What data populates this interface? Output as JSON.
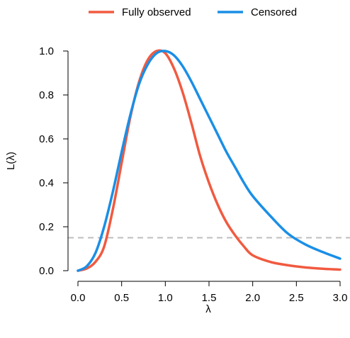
{
  "chart_data": {
    "type": "line",
    "xlabel": "λ",
    "ylabel": "L(λ)",
    "xlim": [
      0,
      3
    ],
    "ylim": [
      0,
      1
    ],
    "x_ticks": [
      "0.0",
      "0.5",
      "1.0",
      "1.5",
      "2.0",
      "2.5",
      "3.0"
    ],
    "y_ticks": [
      "0.0",
      "0.2",
      "0.4",
      "0.6",
      "0.8",
      "1.0"
    ],
    "legend_position": "top",
    "grid": false,
    "reference_line": {
      "y": 0.15,
      "style": "dashed",
      "color": "#bdbdbd"
    },
    "series": [
      {
        "name": "Fully observed",
        "color": "#f15a40",
        "x": [
          0,
          0.1,
          0.2,
          0.3,
          0.4,
          0.5,
          0.6,
          0.7,
          0.8,
          0.9,
          1.0,
          1.1,
          1.2,
          1.3,
          1.4,
          1.5,
          1.6,
          1.7,
          1.8,
          1.9,
          2.0,
          2.2,
          2.4,
          2.6,
          2.8,
          3.0
        ],
        "y": [
          0,
          0.01,
          0.04,
          0.11,
          0.28,
          0.49,
          0.7,
          0.86,
          0.96,
          1.0,
          0.99,
          0.92,
          0.81,
          0.67,
          0.52,
          0.4,
          0.3,
          0.22,
          0.16,
          0.11,
          0.07,
          0.04,
          0.025,
          0.015,
          0.009,
          0.005
        ]
      },
      {
        "name": "Censored",
        "color": "#1a8fe6",
        "x": [
          0,
          0.1,
          0.2,
          0.3,
          0.4,
          0.5,
          0.6,
          0.7,
          0.8,
          0.9,
          1.0,
          1.1,
          1.2,
          1.3,
          1.4,
          1.5,
          1.6,
          1.7,
          1.8,
          1.9,
          2.0,
          2.2,
          2.4,
          2.6,
          2.8,
          3.0
        ],
        "y": [
          0,
          0.02,
          0.08,
          0.2,
          0.36,
          0.54,
          0.71,
          0.85,
          0.94,
          0.99,
          1.0,
          0.98,
          0.93,
          0.86,
          0.78,
          0.7,
          0.62,
          0.54,
          0.47,
          0.4,
          0.34,
          0.25,
          0.17,
          0.12,
          0.085,
          0.055
        ]
      }
    ]
  }
}
